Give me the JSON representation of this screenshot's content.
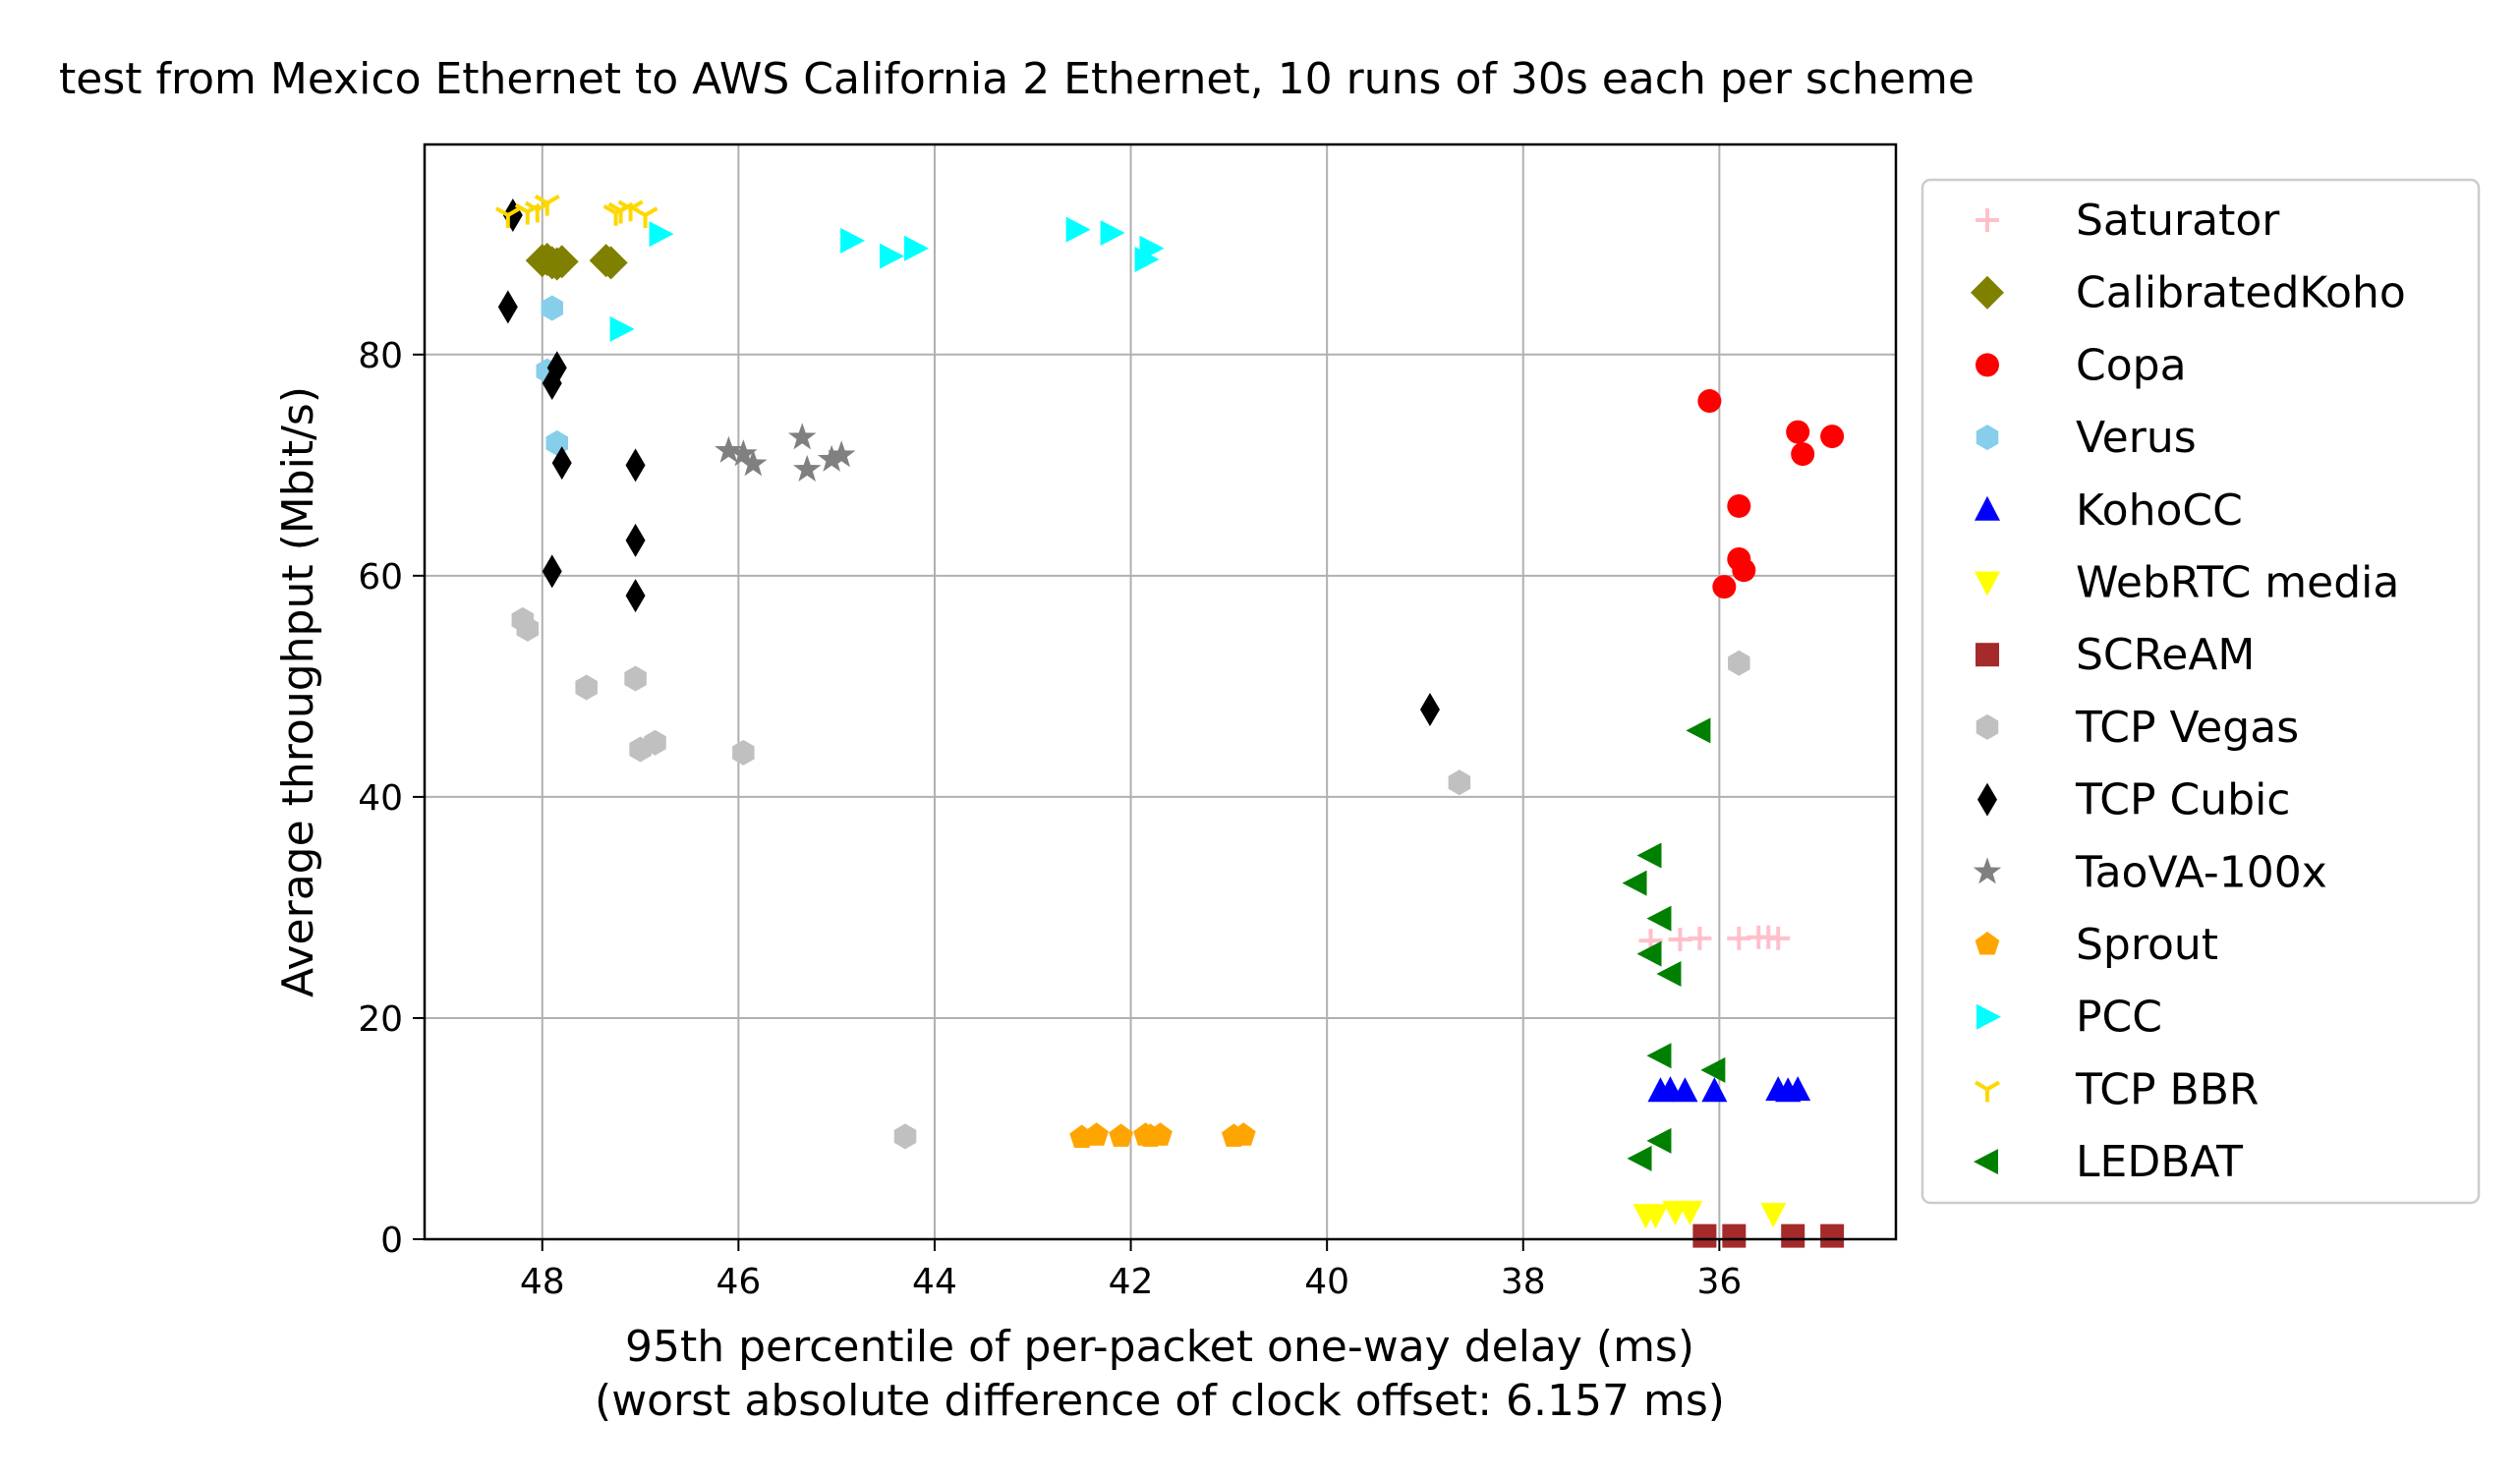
{
  "chart_data": {
    "type": "scatter",
    "title": "test from Mexico Ethernet to AWS California 2 Ethernet, 10 runs of 30s each per scheme",
    "xlabel": "95th percentile of per-packet one-way delay (ms)",
    "xlabel2": "(worst absolute difference of clock offset: 6.157 ms)",
    "ylabel": "Average throughput (Mbit/s)",
    "xlim": [
      49.2,
      34.2
    ],
    "ylim": [
      0,
      99
    ],
    "x_inverted": true,
    "grid": true,
    "legend_position": "right, outside plot",
    "xticks": [
      48,
      46,
      44,
      42,
      40,
      38,
      36
    ],
    "xtick_labels": [
      "48",
      "46",
      "44",
      "42",
      "40",
      "38",
      "36"
    ],
    "yticks": [
      0,
      20,
      40,
      60,
      80
    ],
    "ytick_labels": [
      "0",
      "20",
      "40",
      "60",
      "80"
    ],
    "series": [
      {
        "name": "Saturator",
        "marker": "plus",
        "color": "#ffc0cb",
        "points": [
          [
            36.7,
            27.0
          ],
          [
            36.4,
            27.1
          ],
          [
            36.2,
            27.2
          ],
          [
            35.8,
            27.2
          ],
          [
            35.6,
            27.3
          ],
          [
            35.5,
            27.3
          ],
          [
            35.4,
            27.2
          ]
        ]
      },
      {
        "name": "CalibratedKoho",
        "marker": "diamond",
        "color": "#808000",
        "points": [
          [
            48.0,
            88.5
          ],
          [
            47.9,
            88.3
          ],
          [
            47.8,
            88.4
          ],
          [
            47.3,
            88.3
          ],
          [
            47.35,
            88.5
          ],
          [
            47.95,
            88.6
          ],
          [
            47.85,
            88.2
          ]
        ]
      },
      {
        "name": "Copa",
        "marker": "circle",
        "color": "#ff0000",
        "points": [
          [
            36.1,
            75.8
          ],
          [
            35.8,
            66.3
          ],
          [
            35.8,
            61.5
          ],
          [
            35.75,
            60.5
          ],
          [
            35.95,
            59.0
          ],
          [
            35.2,
            73.0
          ],
          [
            35.15,
            71.0
          ],
          [
            34.85,
            72.6
          ]
        ]
      },
      {
        "name": "Verus",
        "marker": "hexagon",
        "color": "#87ceeb",
        "points": [
          [
            47.9,
            84.2
          ],
          [
            47.95,
            78.5
          ],
          [
            47.85,
            72.0
          ]
        ]
      },
      {
        "name": "KohoCC",
        "marker": "triangle-up",
        "color": "#0000ff",
        "points": [
          [
            36.6,
            13.4
          ],
          [
            36.5,
            13.5
          ],
          [
            36.35,
            13.4
          ],
          [
            36.05,
            13.4
          ],
          [
            35.4,
            13.5
          ],
          [
            35.3,
            13.4
          ],
          [
            35.2,
            13.5
          ]
        ]
      },
      {
        "name": "WebRTC media",
        "marker": "triangle-down",
        "color": "#ffff00",
        "points": [
          [
            36.75,
            2.2
          ],
          [
            36.65,
            2.2
          ],
          [
            36.45,
            2.5
          ],
          [
            36.3,
            2.5
          ],
          [
            35.45,
            2.3
          ]
        ]
      },
      {
        "name": "SCReAM",
        "marker": "square",
        "color": "#a52a2a",
        "points": [
          [
            36.15,
            0.3
          ],
          [
            35.85,
            0.3
          ],
          [
            35.25,
            0.3
          ],
          [
            34.85,
            0.3
          ]
        ]
      },
      {
        "name": "TCP Vegas",
        "marker": "hexagon",
        "color": "#c0c0c0",
        "points": [
          [
            48.2,
            56.0
          ],
          [
            48.15,
            55.2
          ],
          [
            47.55,
            49.9
          ],
          [
            47.05,
            50.7
          ],
          [
            47.0,
            44.3
          ],
          [
            46.85,
            44.9
          ],
          [
            45.95,
            44.0
          ],
          [
            44.3,
            9.3
          ],
          [
            38.65,
            41.3
          ],
          [
            35.8,
            52.1
          ]
        ]
      },
      {
        "name": "TCP Cubic",
        "marker": "thin-diamond",
        "color": "#000000",
        "points": [
          [
            48.35,
            84.3
          ],
          [
            48.3,
            92.6
          ],
          [
            47.85,
            78.8
          ],
          [
            47.9,
            77.4
          ],
          [
            47.8,
            70.2
          ],
          [
            47.9,
            60.4
          ],
          [
            47.05,
            70.0
          ],
          [
            47.05,
            63.2
          ],
          [
            47.05,
            58.2
          ],
          [
            38.95,
            47.9
          ]
        ]
      },
      {
        "name": "TaoVA-100x",
        "marker": "star",
        "color": "#808080",
        "points": [
          [
            46.1,
            71.3
          ],
          [
            45.95,
            71.0
          ],
          [
            45.85,
            70.1
          ],
          [
            45.35,
            72.5
          ],
          [
            45.3,
            69.6
          ],
          [
            45.05,
            70.5
          ],
          [
            44.95,
            70.9
          ]
        ]
      },
      {
        "name": "Sprout",
        "marker": "pentagon",
        "color": "#ffa500",
        "points": [
          [
            42.5,
            9.2
          ],
          [
            42.35,
            9.4
          ],
          [
            42.1,
            9.3
          ],
          [
            41.85,
            9.4
          ],
          [
            41.8,
            9.3
          ],
          [
            41.7,
            9.4
          ],
          [
            40.95,
            9.3
          ],
          [
            40.85,
            9.4
          ]
        ]
      },
      {
        "name": "PCC",
        "marker": "triangle-right",
        "color": "#00ffff",
        "points": [
          [
            46.8,
            90.9
          ],
          [
            47.2,
            82.3
          ],
          [
            44.85,
            90.3
          ],
          [
            44.45,
            88.9
          ],
          [
            44.2,
            89.6
          ],
          [
            42.55,
            91.3
          ],
          [
            42.2,
            91.0
          ],
          [
            41.8,
            89.6
          ],
          [
            41.85,
            88.6
          ]
        ]
      },
      {
        "name": "TCP BBR",
        "marker": "tri-down",
        "color": "#ffd700",
        "points": [
          [
            48.35,
            92.6
          ],
          [
            48.15,
            92.9
          ],
          [
            47.95,
            93.7
          ],
          [
            47.25,
            92.8
          ],
          [
            47.1,
            93.2
          ],
          [
            46.95,
            92.6
          ],
          [
            47.2,
            93.0
          ],
          [
            48.05,
            93.1
          ]
        ]
      },
      {
        "name": "LEDBAT",
        "marker": "triangle-left",
        "color": "#008000",
        "points": [
          [
            36.2,
            46.0
          ],
          [
            36.7,
            34.7
          ],
          [
            36.85,
            32.2
          ],
          [
            36.6,
            29.0
          ],
          [
            36.7,
            25.8
          ],
          [
            36.5,
            24.0
          ],
          [
            36.6,
            16.6
          ],
          [
            36.05,
            15.3
          ],
          [
            36.6,
            8.9
          ],
          [
            36.8,
            7.3
          ]
        ]
      }
    ]
  }
}
